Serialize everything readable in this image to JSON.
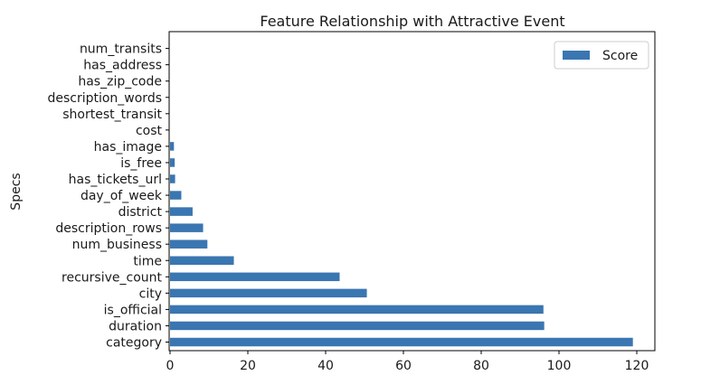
{
  "chart_data": {
    "type": "bar",
    "orientation": "horizontal",
    "title": "Feature Relationship with Attractive Event",
    "xlabel": "",
    "ylabel": "Specs",
    "xlim": [
      0,
      125
    ],
    "xticks": [
      0,
      20,
      40,
      60,
      80,
      100,
      120
    ],
    "grid": false,
    "legend": {
      "position": "top-right",
      "entries": [
        "Score"
      ]
    },
    "bar_color": "#3a76b1",
    "categories": [
      "category",
      "duration",
      "is_official",
      "city",
      "recursive_count",
      "time",
      "num_business",
      "description_rows",
      "district",
      "day_of_week",
      "has_tickets_url",
      "is_free",
      "has_image",
      "cost",
      "shortest_transit",
      "description_words",
      "has_zip_code",
      "has_address",
      "num_transits"
    ],
    "series": [
      {
        "name": "Score",
        "values": [
          119,
          96.2,
          96,
          50.6,
          43.6,
          16.4,
          9.6,
          8.5,
          5.8,
          2.9,
          1.3,
          1.2,
          1.0,
          0,
          0,
          0,
          0,
          0,
          0
        ]
      }
    ]
  }
}
